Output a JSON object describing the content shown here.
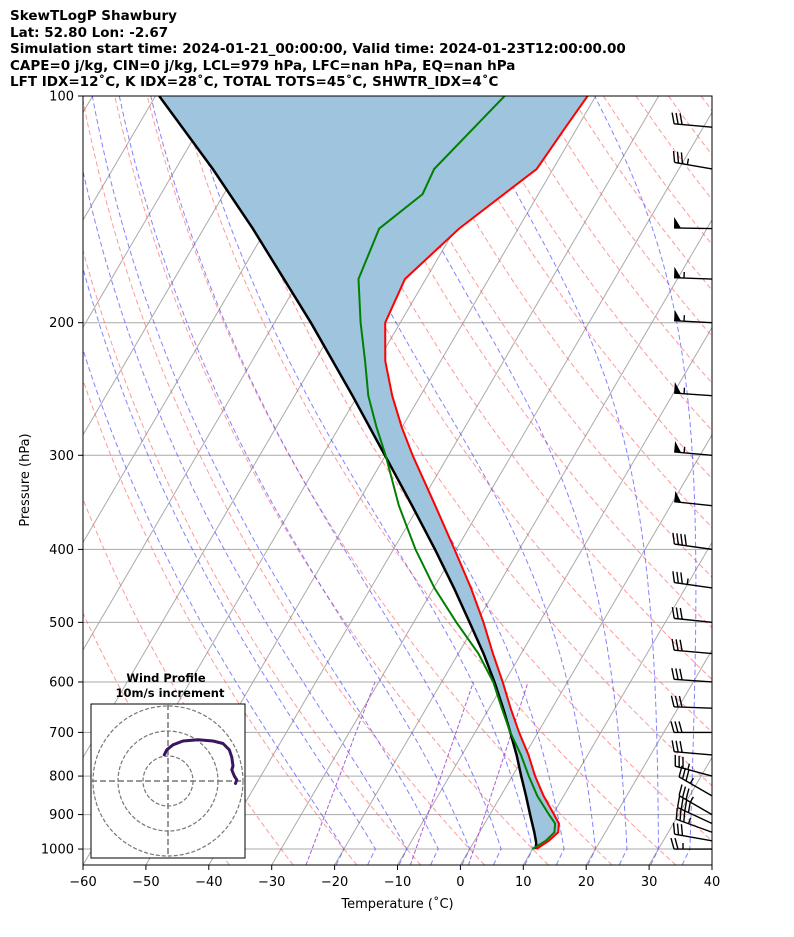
{
  "header": {
    "line1": "SkewTLogP Shawbury",
    "line2": "Lat: 52.80   Lon: -2.67",
    "line3": "Simulation start time: 2024-01-21_00:00:00, Valid time: 2024-01-23T12:00:00.00",
    "line4": "CAPE=0 j/kg, CIN=0 j/kg, LCL=979 hPa, LFC=nan hPa, EQ=nan hPa",
    "line5": "LFT IDX=12˚C, K IDX=28˚C, TOTAL TOTS=45˚C, SHWTR_IDX=4˚C"
  },
  "colors": {
    "temperature": "#ff0000",
    "dewpoint": "#008000",
    "parcel": "#000000",
    "shade": "#9fc4de",
    "dry_adiabat": "#ff5555",
    "moist_adiabat": "#4040ff",
    "mixing_ratio": "#9933cc",
    "isotherm": "#aaaaaa"
  },
  "chart_data": {
    "type": "skewt",
    "xlabel": "Temperature (˚C)",
    "ylabel": "Pressure (hPa)",
    "xlim": [
      -60,
      40
    ],
    "ylim": [
      1050,
      100
    ],
    "x_ticks": [
      "−60",
      "−50",
      "−40",
      "−30",
      "−20",
      "−10",
      "0",
      "10",
      "20",
      "30",
      "40"
    ],
    "y_ticks": [
      100,
      200,
      300,
      400,
      500,
      600,
      700,
      800,
      900,
      1000
    ],
    "temperature": [
      {
        "p": 1000,
        "t": 10.6
      },
      {
        "p": 975,
        "t": 11.8
      },
      {
        "p": 950,
        "t": 12.5
      },
      {
        "p": 925,
        "t": 11.8
      },
      {
        "p": 900,
        "t": 10.2
      },
      {
        "p": 850,
        "t": 6.8
      },
      {
        "p": 800,
        "t": 3.6
      },
      {
        "p": 750,
        "t": 0.6
      },
      {
        "p": 700,
        "t": -3.0
      },
      {
        "p": 650,
        "t": -6.6
      },
      {
        "p": 600,
        "t": -10.3
      },
      {
        "p": 550,
        "t": -14.5
      },
      {
        "p": 500,
        "t": -18.9
      },
      {
        "p": 450,
        "t": -24.1
      },
      {
        "p": 400,
        "t": -30.3
      },
      {
        "p": 350,
        "t": -37.4
      },
      {
        "p": 300,
        "t": -45.7
      },
      {
        "p": 275,
        "t": -50.1
      },
      {
        "p": 250,
        "t": -54.5
      },
      {
        "p": 225,
        "t": -58.8
      },
      {
        "p": 200,
        "t": -62.4
      },
      {
        "p": 175,
        "t": -63.3
      },
      {
        "p": 150,
        "t": -59.4
      },
      {
        "p": 125,
        "t": -52.6
      },
      {
        "p": 110,
        "t": -51.9
      },
      {
        "p": 100,
        "t": -51.3
      }
    ],
    "dewpoint": [
      {
        "p": 1000,
        "t": 10.0
      },
      {
        "p": 975,
        "t": 11.3
      },
      {
        "p": 950,
        "t": 11.9
      },
      {
        "p": 925,
        "t": 11.2
      },
      {
        "p": 900,
        "t": 9.4
      },
      {
        "p": 850,
        "t": 5.8
      },
      {
        "p": 800,
        "t": 2.6
      },
      {
        "p": 750,
        "t": -0.6
      },
      {
        "p": 700,
        "t": -4.4
      },
      {
        "p": 650,
        "t": -8.0
      },
      {
        "p": 600,
        "t": -11.8
      },
      {
        "p": 550,
        "t": -16.8
      },
      {
        "p": 500,
        "t": -23.2
      },
      {
        "p": 450,
        "t": -29.9
      },
      {
        "p": 400,
        "t": -36.5
      },
      {
        "p": 350,
        "t": -43.2
      },
      {
        "p": 300,
        "t": -50.0
      },
      {
        "p": 275,
        "t": -54.1
      },
      {
        "p": 250,
        "t": -58.3
      },
      {
        "p": 225,
        "t": -62.0
      },
      {
        "p": 200,
        "t": -66.3
      },
      {
        "p": 175,
        "t": -70.7
      },
      {
        "p": 150,
        "t": -72.1
      },
      {
        "p": 135,
        "t": -68.4
      },
      {
        "p": 125,
        "t": -68.9
      },
      {
        "p": 100,
        "t": -64.5
      }
    ],
    "parcel": [
      {
        "p": 1000,
        "t": 10.6
      },
      {
        "p": 979,
        "t": 9.9
      },
      {
        "p": 950,
        "t": 8.7
      },
      {
        "p": 900,
        "t": 6.4
      },
      {
        "p": 850,
        "t": 4.0
      },
      {
        "p": 800,
        "t": 1.4
      },
      {
        "p": 750,
        "t": -1.3
      },
      {
        "p": 700,
        "t": -4.4
      },
      {
        "p": 650,
        "t": -7.8
      },
      {
        "p": 600,
        "t": -11.6
      },
      {
        "p": 550,
        "t": -16.0
      },
      {
        "p": 500,
        "t": -21.1
      },
      {
        "p": 450,
        "t": -26.8
      },
      {
        "p": 400,
        "t": -33.4
      },
      {
        "p": 350,
        "t": -41.1
      },
      {
        "p": 300,
        "t": -50.1
      },
      {
        "p": 250,
        "t": -60.8
      },
      {
        "p": 200,
        "t": -74.2
      },
      {
        "p": 150,
        "t": -92.2
      },
      {
        "p": 125,
        "t": -104.1
      },
      {
        "p": 100,
        "t": -119.4
      }
    ],
    "wind_barbs": [
      {
        "p": 1000,
        "speed_kt": 25,
        "dir_deg": 270
      },
      {
        "p": 975,
        "speed_kt": 30,
        "dir_deg": 280
      },
      {
        "p": 950,
        "speed_kt": 35,
        "dir_deg": 290
      },
      {
        "p": 925,
        "speed_kt": 40,
        "dir_deg": 295
      },
      {
        "p": 900,
        "speed_kt": 35,
        "dir_deg": 300
      },
      {
        "p": 850,
        "speed_kt": 35,
        "dir_deg": 300
      },
      {
        "p": 800,
        "speed_kt": 35,
        "dir_deg": 285
      },
      {
        "p": 750,
        "speed_kt": 30,
        "dir_deg": 275
      },
      {
        "p": 700,
        "speed_kt": 30,
        "dir_deg": 270
      },
      {
        "p": 650,
        "speed_kt": 30,
        "dir_deg": 272
      },
      {
        "p": 600,
        "speed_kt": 30,
        "dir_deg": 274
      },
      {
        "p": 550,
        "speed_kt": 30,
        "dir_deg": 275
      },
      {
        "p": 500,
        "speed_kt": 30,
        "dir_deg": 276
      },
      {
        "p": 450,
        "speed_kt": 35,
        "dir_deg": 278
      },
      {
        "p": 400,
        "speed_kt": 40,
        "dir_deg": 278
      },
      {
        "p": 350,
        "speed_kt": 50,
        "dir_deg": 276
      },
      {
        "p": 300,
        "speed_kt": 55,
        "dir_deg": 275
      },
      {
        "p": 250,
        "speed_kt": 55,
        "dir_deg": 274
      },
      {
        "p": 200,
        "speed_kt": 55,
        "dir_deg": 273
      },
      {
        "p": 175,
        "speed_kt": 55,
        "dir_deg": 272
      },
      {
        "p": 150,
        "speed_kt": 50,
        "dir_deg": 271
      },
      {
        "p": 125,
        "speed_kt": 35,
        "dir_deg": 280
      },
      {
        "p": 110,
        "speed_kt": 30,
        "dir_deg": 275
      }
    ],
    "hodograph": {
      "title": "Wind Profile",
      "subtitle": "10m/s increment",
      "rings_ms": [
        10,
        20,
        30
      ],
      "points_ms": [
        {
          "u": 27.0,
          "v": -1.0
        },
        {
          "u": 27.5,
          "v": 0.5
        },
        {
          "u": 26.5,
          "v": 2.0
        },
        {
          "u": 25.5,
          "v": 4.5
        },
        {
          "u": 26.0,
          "v": 6.0
        },
        {
          "u": 25.5,
          "v": 9.5
        },
        {
          "u": 24.5,
          "v": 12.5
        },
        {
          "u": 22.0,
          "v": 15.0
        },
        {
          "u": 18.0,
          "v": 16.0
        },
        {
          "u": 12.0,
          "v": 16.5
        },
        {
          "u": 6.0,
          "v": 16.0
        },
        {
          "u": 2.0,
          "v": 14.5
        },
        {
          "u": -0.5,
          "v": 12.5
        },
        {
          "u": -1.5,
          "v": 10.5
        }
      ]
    }
  }
}
